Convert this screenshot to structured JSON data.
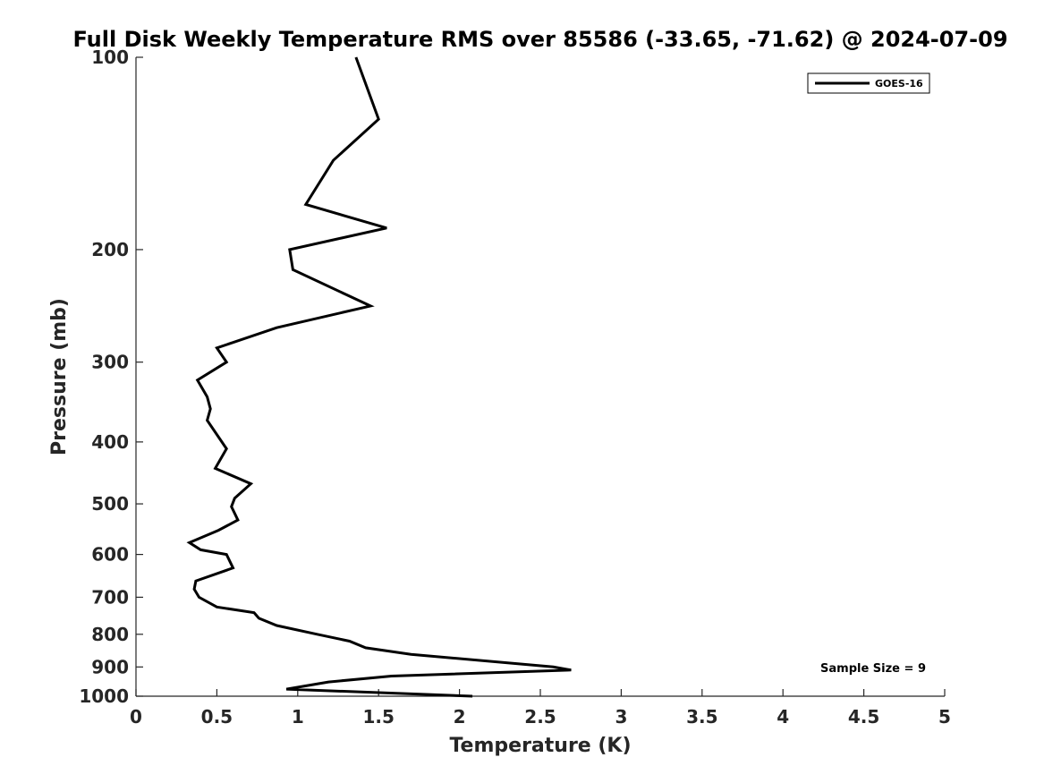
{
  "chart_data": {
    "type": "line",
    "title": "Full Disk Weekly Temperature RMS over 85586 (-33.65, -71.62) @ 2024-07-09",
    "xlabel": "Temperature (K)",
    "ylabel": "Pressure (mb)",
    "xlim": [
      0,
      5
    ],
    "ylim": [
      100,
      1000
    ],
    "y_scale": "log",
    "y_reversed": true,
    "x_ticks": [
      "0",
      "0.5",
      "1",
      "1.5",
      "2",
      "2.5",
      "3",
      "3.5",
      "4",
      "4.5",
      "5"
    ],
    "y_ticks": [
      "100",
      "200",
      "300",
      "400",
      "500",
      "600",
      "700",
      "800",
      "900",
      "1000"
    ],
    "grid": false,
    "legend_position": "top-right",
    "series": [
      {
        "name": "GOES-16",
        "color": "#000000",
        "points": [
          [
            1.36,
            100
          ],
          [
            1.5,
            125
          ],
          [
            1.22,
            145
          ],
          [
            1.05,
            170
          ],
          [
            1.55,
            185
          ],
          [
            0.95,
            200
          ],
          [
            0.97,
            215
          ],
          [
            1.45,
            245
          ],
          [
            0.87,
            265
          ],
          [
            0.5,
            285
          ],
          [
            0.56,
            300
          ],
          [
            0.38,
            320
          ],
          [
            0.44,
            340
          ],
          [
            0.46,
            355
          ],
          [
            0.44,
            370
          ],
          [
            0.56,
            410
          ],
          [
            0.49,
            440
          ],
          [
            0.71,
            465
          ],
          [
            0.61,
            490
          ],
          [
            0.59,
            505
          ],
          [
            0.63,
            530
          ],
          [
            0.51,
            550
          ],
          [
            0.33,
            575
          ],
          [
            0.4,
            590
          ],
          [
            0.56,
            600
          ],
          [
            0.6,
            630
          ],
          [
            0.37,
            660
          ],
          [
            0.36,
            680
          ],
          [
            0.39,
            700
          ],
          [
            0.5,
            725
          ],
          [
            0.73,
            740
          ],
          [
            0.76,
            755
          ],
          [
            0.87,
            775
          ],
          [
            1.12,
            800
          ],
          [
            1.32,
            820
          ],
          [
            1.42,
            840
          ],
          [
            1.7,
            860
          ],
          [
            2.58,
            900
          ],
          [
            2.69,
            910
          ],
          [
            1.58,
            930
          ],
          [
            1.19,
            950
          ],
          [
            0.93,
            975
          ],
          [
            2.08,
            1000
          ]
        ]
      }
    ],
    "annotations": [
      "Sample Size = 9"
    ]
  }
}
